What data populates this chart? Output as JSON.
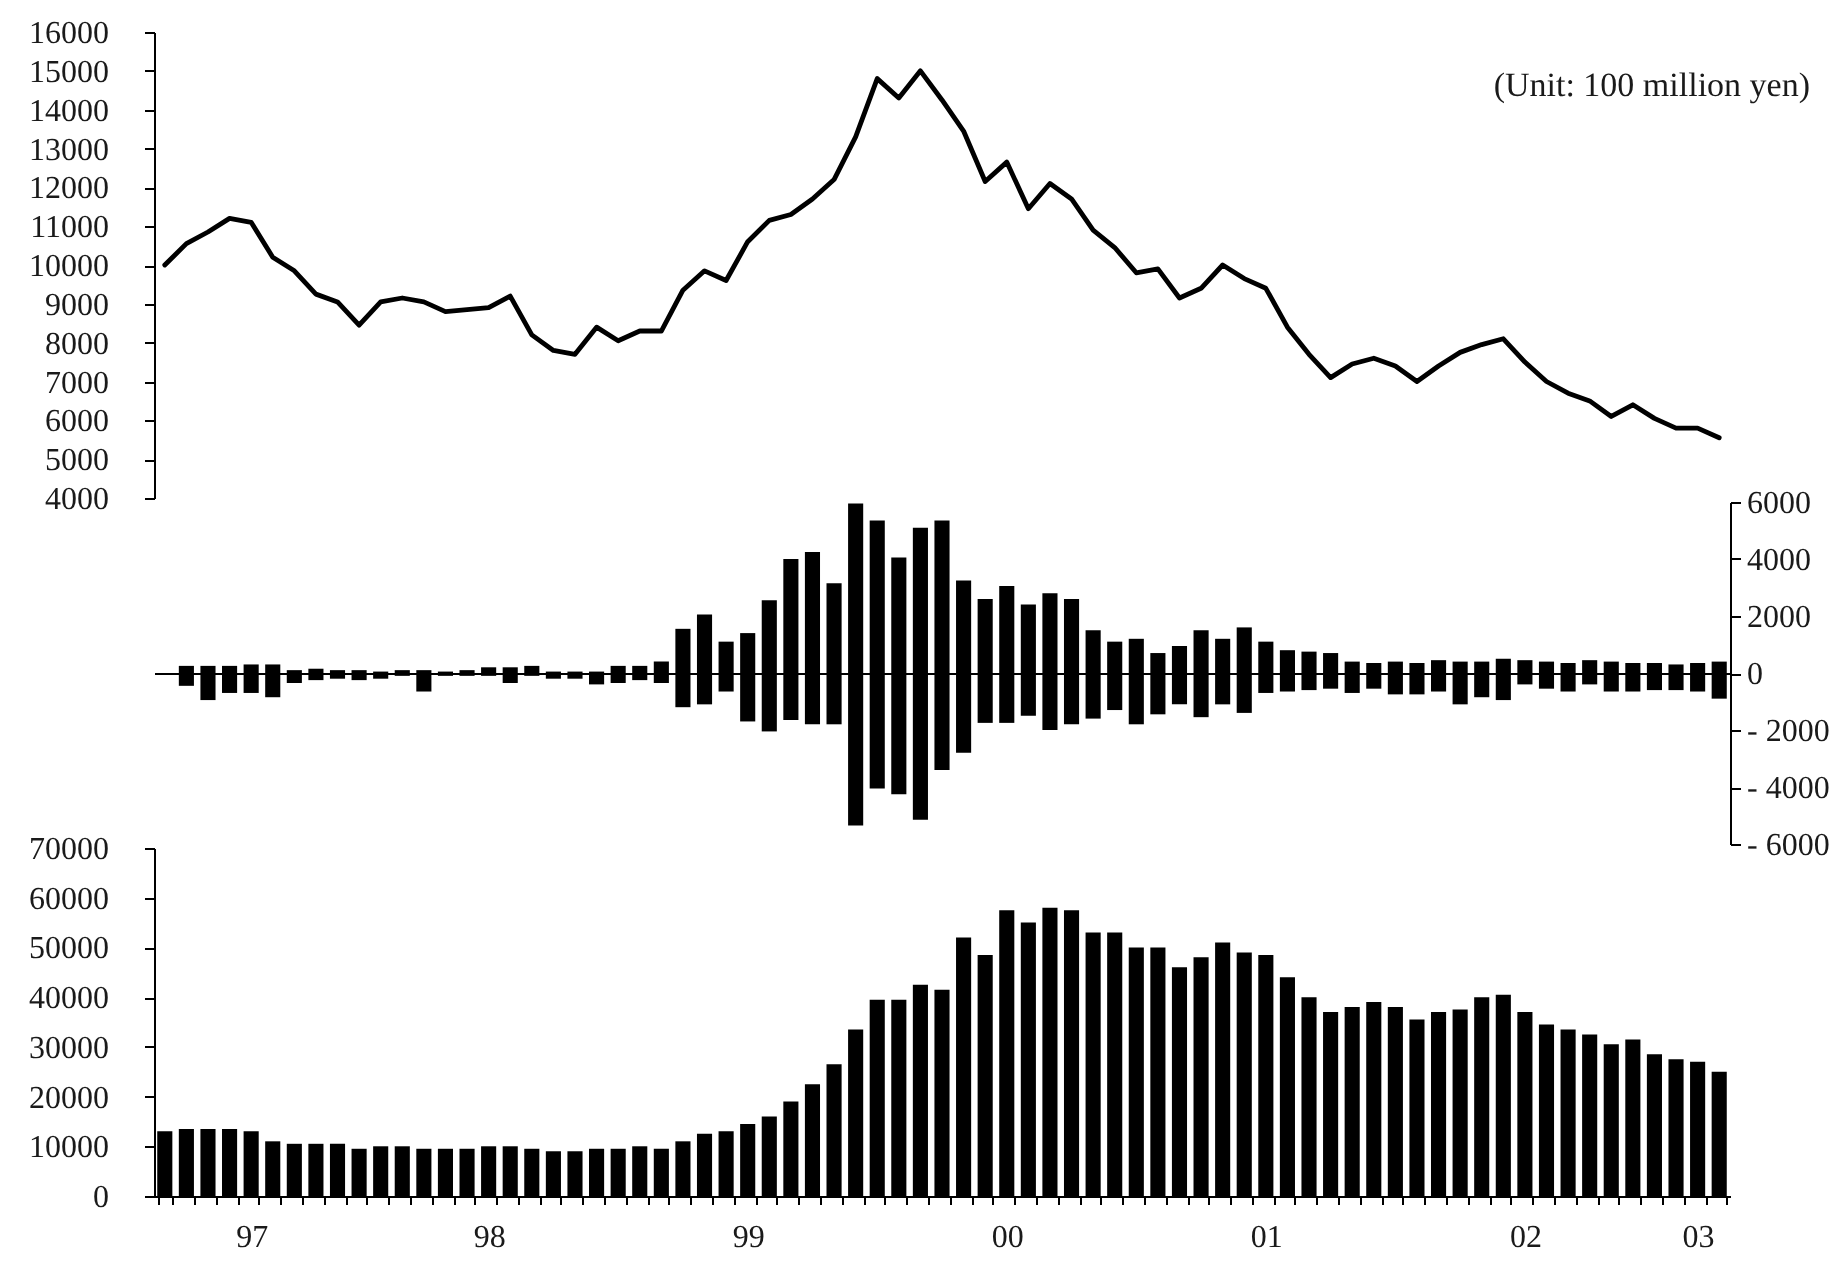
{
  "chart_data": [
    {
      "type": "line",
      "line_style": "solid",
      "tick_labels": "y",
      "annotations": [
        "(Unit: 100 million yen)"
      ],
      "categories": [
        null,
        null,
        null,
        null,
        null,
        null,
        null,
        null,
        null,
        null,
        null,
        null,
        null,
        null,
        null,
        null,
        null,
        null,
        null,
        null,
        null,
        null,
        null,
        null,
        null,
        null,
        null,
        null,
        null,
        null,
        null,
        null,
        null,
        null,
        null,
        null,
        null,
        null,
        null,
        null,
        null,
        null,
        null,
        null,
        null,
        null,
        null,
        null,
        null,
        null,
        null,
        null,
        null,
        null,
        null,
        null,
        null,
        null,
        null,
        null,
        null,
        null,
        null,
        null,
        null,
        null,
        null,
        null,
        null,
        null,
        null,
        null,
        null
      ],
      "series": [
        {
          "color": "#000000",
          "values": [
            10000,
            10550,
            10850,
            11200,
            11100,
            10200,
            9850,
            9250,
            9050,
            8450,
            9050,
            9150,
            9050,
            8800,
            8850,
            8900,
            9200,
            8200,
            7800,
            7700,
            8400,
            8050,
            8300,
            8300,
            9350,
            9850,
            9600,
            10600,
            11150,
            11300,
            11700,
            12200,
            13300,
            14800,
            14300,
            15000,
            14250,
            13450,
            12150,
            12650,
            11450,
            12100,
            11700,
            10900,
            10450,
            9800,
            9900,
            9150,
            9400,
            10000,
            9650,
            9400,
            8400,
            7700,
            7100,
            7450,
            7600,
            7400,
            7000,
            7400,
            7750,
            7950,
            8100,
            7500,
            7000,
            6700,
            6500,
            6100,
            6400,
            6050,
            5800,
            5800,
            5550
          ]
        }
      ],
      "ylim": [
        4000,
        16000
      ],
      "yticks": [
        4000,
        5000,
        6000,
        7000,
        8000,
        9000,
        10000,
        11000,
        12000,
        13000,
        14000,
        15000,
        16000
      ]
    },
    {
      "type": "bar",
      "stacked": true,
      "tick_labels": "y",
      "categories": [
        null,
        null,
        null,
        null,
        null,
        null,
        null,
        null,
        null,
        null,
        null,
        null,
        null,
        null,
        null,
        null,
        null,
        null,
        null,
        null,
        null,
        null,
        null,
        null,
        null,
        null,
        null,
        null,
        null,
        null,
        null,
        null,
        null,
        null,
        null,
        null,
        null,
        null,
        null,
        null,
        null,
        null,
        null,
        null,
        null,
        null,
        null,
        null,
        null,
        null,
        null,
        null,
        null,
        null,
        null,
        null,
        null,
        null,
        null,
        null,
        null,
        null,
        null,
        null,
        null,
        null,
        null,
        null,
        null,
        null,
        null,
        null,
        null
      ],
      "series": [
        {
          "color": "#000000",
          "values": [
            null,
            250,
            250,
            250,
            300,
            300,
            100,
            150,
            100,
            100,
            50,
            100,
            100,
            50,
            100,
            200,
            200,
            250,
            50,
            50,
            50,
            250,
            250,
            400,
            1550,
            2050,
            1100,
            1400,
            2550,
            4000,
            4250,
            3150,
            5950,
            5350,
            4050,
            5100,
            5350,
            3250,
            2600,
            3050,
            2400,
            2800,
            2600,
            1500,
            1100,
            1200,
            700,
            950,
            1500,
            1200,
            1600,
            1100,
            800,
            750,
            700,
            400,
            350,
            400,
            350,
            450,
            400,
            400,
            500,
            450,
            400,
            350,
            450,
            400,
            350,
            350,
            300,
            350,
            400
          ]
        },
        {
          "color": "#000000",
          "values": [
            null,
            -450,
            -950,
            -700,
            -700,
            -850,
            -350,
            -250,
            -200,
            -250,
            -200,
            -100,
            -650,
            -100,
            -100,
            -100,
            -350,
            -100,
            -200,
            -200,
            -400,
            -350,
            -250,
            -350,
            -1200,
            -1100,
            -650,
            -1700,
            -2050,
            -1650,
            -1800,
            -1800,
            -5350,
            -4050,
            -4250,
            -5150,
            -3400,
            -2800,
            -1750,
            -1750,
            -1500,
            -2000,
            -1800,
            -1600,
            -1300,
            -1800,
            -1450,
            -1100,
            -1550,
            -1100,
            -1400,
            -700,
            -650,
            -600,
            -550,
            -700,
            -550,
            -750,
            -750,
            -650,
            -1100,
            -850,
            -950,
            -400,
            -550,
            -650,
            -400,
            -650,
            -650,
            -600,
            -600,
            -650,
            -900
          ]
        }
      ],
      "ylim": [
        -6000,
        6000
      ],
      "yticks": [
        {
          "value": -6000,
          "label": "- 6000"
        },
        {
          "value": -4000,
          "label": "- 4000"
        },
        {
          "value": -2000,
          "label": "- 2000"
        },
        0,
        2000,
        4000,
        6000
      ]
    },
    {
      "type": "bar",
      "categories": [
        null,
        null,
        null,
        null,
        "97",
        null,
        null,
        null,
        null,
        null,
        null,
        null,
        null,
        null,
        null,
        "98",
        null,
        null,
        null,
        null,
        null,
        null,
        null,
        null,
        null,
        null,
        null,
        "99",
        null,
        null,
        null,
        null,
        null,
        null,
        null,
        null,
        null,
        null,
        null,
        "00",
        null,
        null,
        null,
        null,
        null,
        null,
        null,
        null,
        null,
        null,
        null,
        "01",
        null,
        null,
        null,
        null,
        null,
        null,
        null,
        null,
        null,
        null,
        null,
        "02",
        null,
        null,
        null,
        null,
        null,
        null,
        null,
        "03",
        null
      ],
      "series": [
        {
          "color": "#000000",
          "values": [
            13000,
            13500,
            13500,
            13500,
            13000,
            11000,
            10500,
            10500,
            10500,
            9500,
            10000,
            10000,
            9500,
            9500,
            9500,
            10000,
            10000,
            9500,
            9000,
            9000,
            9500,
            9500,
            10000,
            9500,
            11000,
            12500,
            13000,
            14500,
            16000,
            19000,
            22500,
            26500,
            33500,
            39500,
            39500,
            42500,
            41500,
            52000,
            48500,
            57500,
            55000,
            58000,
            57500,
            53000,
            53000,
            50000,
            50000,
            46000,
            48000,
            51000,
            49000,
            48500,
            44000,
            40000,
            37000,
            38000,
            39000,
            38000,
            35500,
            37000,
            37500,
            40000,
            40500,
            37000,
            34500,
            33500,
            32500,
            30500,
            31500,
            28500,
            27500,
            27000,
            25000
          ]
        }
      ],
      "ylim": [
        0,
        70000
      ],
      "yticks": [
        0,
        10000,
        20000,
        30000,
        40000,
        50000,
        60000,
        70000
      ]
    }
  ]
}
